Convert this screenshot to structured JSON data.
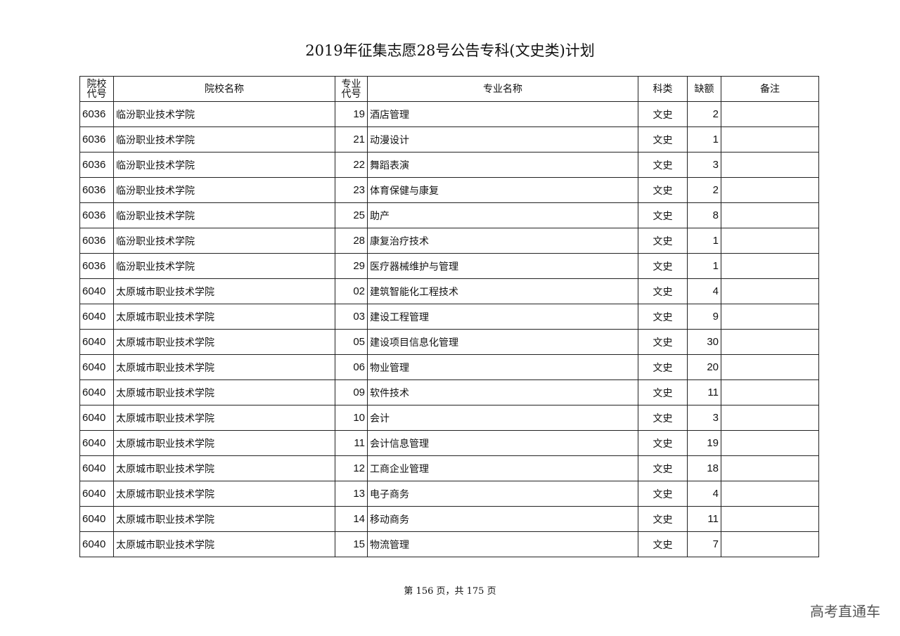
{
  "title": "2019年征集志愿28号公告专科(文史类)计划",
  "headers": [
    "院校代号",
    "院校名称",
    "专业代号",
    "专业名称",
    "科类",
    "缺额",
    "备注"
  ],
  "rows": [
    [
      "6036",
      "临汾职业技术学院",
      "19",
      "酒店管理",
      "文史",
      "2",
      ""
    ],
    [
      "6036",
      "临汾职业技术学院",
      "21",
      "动漫设计",
      "文史",
      "1",
      ""
    ],
    [
      "6036",
      "临汾职业技术学院",
      "22",
      "舞蹈表演",
      "文史",
      "3",
      ""
    ],
    [
      "6036",
      "临汾职业技术学院",
      "23",
      "体育保健与康复",
      "文史",
      "2",
      ""
    ],
    [
      "6036",
      "临汾职业技术学院",
      "25",
      "助产",
      "文史",
      "8",
      ""
    ],
    [
      "6036",
      "临汾职业技术学院",
      "28",
      "康复治疗技术",
      "文史",
      "1",
      ""
    ],
    [
      "6036",
      "临汾职业技术学院",
      "29",
      "医疗器械维护与管理",
      "文史",
      "1",
      ""
    ],
    [
      "6040",
      "太原城市职业技术学院",
      "02",
      "建筑智能化工程技术",
      "文史",
      "4",
      ""
    ],
    [
      "6040",
      "太原城市职业技术学院",
      "03",
      "建设工程管理",
      "文史",
      "9",
      ""
    ],
    [
      "6040",
      "太原城市职业技术学院",
      "05",
      "建设项目信息化管理",
      "文史",
      "30",
      ""
    ],
    [
      "6040",
      "太原城市职业技术学院",
      "06",
      "物业管理",
      "文史",
      "20",
      ""
    ],
    [
      "6040",
      "太原城市职业技术学院",
      "09",
      "软件技术",
      "文史",
      "11",
      ""
    ],
    [
      "6040",
      "太原城市职业技术学院",
      "10",
      "会计",
      "文史",
      "3",
      ""
    ],
    [
      "6040",
      "太原城市职业技术学院",
      "11",
      "会计信息管理",
      "文史",
      "19",
      ""
    ],
    [
      "6040",
      "太原城市职业技术学院",
      "12",
      "工商企业管理",
      "文史",
      "18",
      ""
    ],
    [
      "6040",
      "太原城市职业技术学院",
      "13",
      "电子商务",
      "文史",
      "4",
      ""
    ],
    [
      "6040",
      "太原城市职业技术学院",
      "14",
      "移动商务",
      "文史",
      "11",
      ""
    ],
    [
      "6040",
      "太原城市职业技术学院",
      "15",
      "物流管理",
      "文史",
      "7",
      ""
    ]
  ],
  "footer": "第 156 页，共 175 页",
  "watermark": "高考直通车"
}
